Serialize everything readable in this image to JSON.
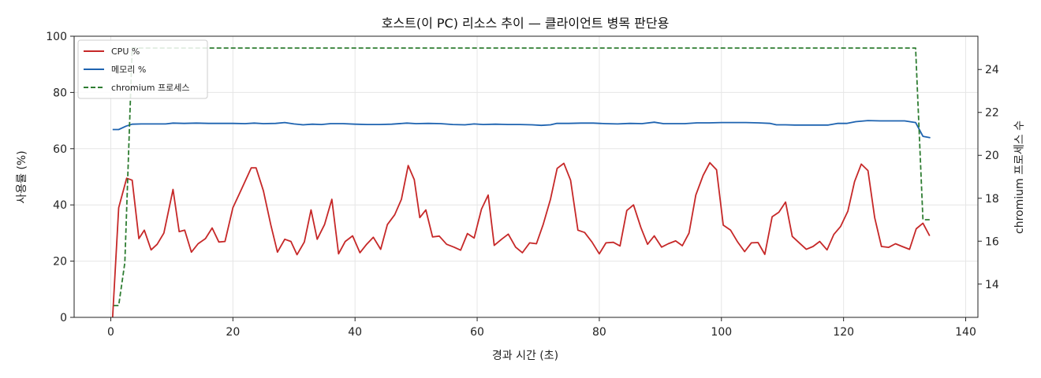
{
  "chart_data": {
    "type": "line",
    "title": "호스트(이 PC) 리소스 추이 — 클라이언트 병목 판단용",
    "xlabel": "경과 시간 (초)",
    "ylabel": "사용률 (%)",
    "y2label": "chromium 프로세스 수",
    "xlim": [
      -6,
      142
    ],
    "ylim": [
      0,
      100
    ],
    "y2lim": [
      12.45,
      25.55
    ],
    "xticks": [
      "0",
      "20",
      "40",
      "60",
      "80",
      "100",
      "120",
      "140"
    ],
    "yticks": [
      "0",
      "20",
      "40",
      "60",
      "80",
      "100"
    ],
    "y2ticks": [
      "14",
      "16",
      "18",
      "20",
      "22",
      "24"
    ],
    "grid": true,
    "legend_position": "top-left",
    "series": [
      {
        "name": "CPU %",
        "axis": "left",
        "color": "#c62828",
        "style": "solid",
        "x": [
          0.3,
          1.3,
          2.6,
          3.5,
          4.6,
          5.5,
          6.6,
          7.6,
          8.7,
          10.2,
          11.2,
          12.1,
          13.2,
          14.3,
          15.5,
          16.6,
          17.7,
          18.7,
          20.0,
          21.5,
          23.0,
          23.8,
          25.0,
          26.2,
          27.3,
          28.5,
          29.5,
          30.5,
          31.7,
          32.8,
          33.8,
          35.0,
          36.2,
          37.3,
          38.4,
          39.6,
          40.8,
          41.9,
          43.0,
          44.2,
          45.3,
          46.5,
          47.6,
          48.7,
          49.7,
          50.6,
          51.6,
          52.7,
          53.8,
          55.0,
          56.2,
          57.3,
          58.4,
          59.5,
          60.7,
          61.8,
          62.8,
          64.0,
          65.1,
          66.3,
          67.4,
          68.6,
          69.7,
          70.8,
          72.0,
          73.1,
          74.2,
          75.3,
          76.5,
          77.6,
          78.8,
          80.0,
          81.1,
          82.3,
          83.4,
          84.5,
          85.6,
          86.8,
          87.9,
          89.0,
          90.2,
          91.3,
          92.5,
          93.6,
          94.7,
          95.8,
          97.0,
          98.1,
          99.2,
          100.3,
          101.5,
          102.6,
          103.8,
          104.9,
          106.0,
          107.1,
          108.3,
          109.4,
          110.5,
          111.6,
          112.8,
          113.9,
          115.0,
          116.1,
          117.3,
          118.4,
          119.5,
          120.7,
          121.8,
          122.9,
          124.0,
          125.1,
          126.2,
          127.4,
          128.5,
          129.6,
          130.8,
          131.9,
          133.0,
          134.1
        ],
        "y": [
          0,
          39.0,
          49.5,
          48.8,
          28.0,
          31.0,
          24.0,
          26.0,
          30.0,
          45.5,
          30.5,
          31.0,
          23.2,
          26.2,
          28.0,
          31.8,
          26.8,
          27.0,
          39.0,
          46.0,
          53.2,
          53.2,
          45.0,
          33.0,
          23.2,
          27.8,
          27.0,
          22.3,
          26.8,
          38.2,
          27.8,
          33.0,
          42.0,
          22.6,
          27.0,
          29.0,
          23.0,
          26.0,
          28.5,
          24.2,
          33.0,
          36.5,
          42.0,
          54.0,
          49.0,
          35.5,
          38.2,
          28.6,
          28.9,
          26.0,
          25.0,
          23.9,
          29.8,
          28.2,
          38.5,
          43.5,
          25.6,
          27.8,
          29.6,
          25.0,
          23.0,
          26.5,
          26.2,
          33.0,
          42.0,
          53.0,
          54.8,
          48.8,
          31.0,
          30.2,
          26.8,
          22.6,
          26.5,
          26.7,
          25.4,
          38.0,
          40.0,
          32.0,
          26.0,
          29.0,
          25.0,
          26.2,
          27.2,
          25.5,
          30.0,
          43.5,
          50.5,
          55.0,
          52.5,
          32.8,
          31.0,
          27.0,
          23.4,
          26.5,
          26.6,
          22.4,
          35.8,
          37.4,
          41.0,
          28.8,
          26.4,
          24.2,
          25.2,
          27.0,
          24.0,
          29.5,
          32.3,
          37.8,
          48.3,
          54.5,
          52.2,
          35.5,
          25.2,
          24.9,
          26.2,
          25.2,
          24.2,
          31.5,
          33.5,
          29.0
        ]
      },
      {
        "name": "메모리 %",
        "axis": "left",
        "color": "#1e63b0",
        "style": "solid",
        "x": [
          0.3,
          1.3,
          2.5,
          3.5,
          5.0,
          7.0,
          9.0,
          10.2,
          12.0,
          14.0,
          16.0,
          18.0,
          20.0,
          22.0,
          23.5,
          25.0,
          27.0,
          28.5,
          30.0,
          31.5,
          33.0,
          34.5,
          36.0,
          38.0,
          40.0,
          42.0,
          44.0,
          46.0,
          48.5,
          50.0,
          52.0,
          54.0,
          56.0,
          58.0,
          59.5,
          61.0,
          63.0,
          65.0,
          67.0,
          69.0,
          70.5,
          72.0,
          73.0,
          75.0,
          77.0,
          79.0,
          81.0,
          83.0,
          85.0,
          87.0,
          89.0,
          90.5,
          92.0,
          94.0,
          96.0,
          98.0,
          100.0,
          102.0,
          104.0,
          106.0,
          108.0,
          109.0,
          110.5,
          112.0,
          114.0,
          116.0,
          117.5,
          119.0,
          120.5,
          122.0,
          124.0,
          126.0,
          128.0,
          130.0,
          131.8,
          133.0,
          134.2
        ],
        "y": [
          66.8,
          66.8,
          68.0,
          68.7,
          68.8,
          68.8,
          68.8,
          69.1,
          69.0,
          69.1,
          69.0,
          69.0,
          69.0,
          68.9,
          69.1,
          68.9,
          69.0,
          69.3,
          68.8,
          68.5,
          68.7,
          68.6,
          68.9,
          68.9,
          68.7,
          68.6,
          68.6,
          68.7,
          69.1,
          68.9,
          69.0,
          68.9,
          68.6,
          68.5,
          68.8,
          68.6,
          68.7,
          68.6,
          68.6,
          68.5,
          68.3,
          68.5,
          69.0,
          69.0,
          69.1,
          69.1,
          68.9,
          68.8,
          69.0,
          68.9,
          69.4,
          68.9,
          68.9,
          68.9,
          69.2,
          69.2,
          69.3,
          69.3,
          69.3,
          69.2,
          69.0,
          68.5,
          68.5,
          68.4,
          68.4,
          68.4,
          68.4,
          69.0,
          69.0,
          69.6,
          70.0,
          69.9,
          69.9,
          69.9,
          69.3,
          64.4,
          63.9
        ]
      },
      {
        "name": "chromium 프로세스",
        "axis": "right",
        "color": "#2e7d32",
        "style": "dashed",
        "x": [
          0.5,
          1.3,
          2.3,
          3.5,
          131.8,
          133.0,
          134.2
        ],
        "y": [
          13,
          13,
          15,
          25,
          25,
          17,
          17
        ]
      }
    ]
  }
}
